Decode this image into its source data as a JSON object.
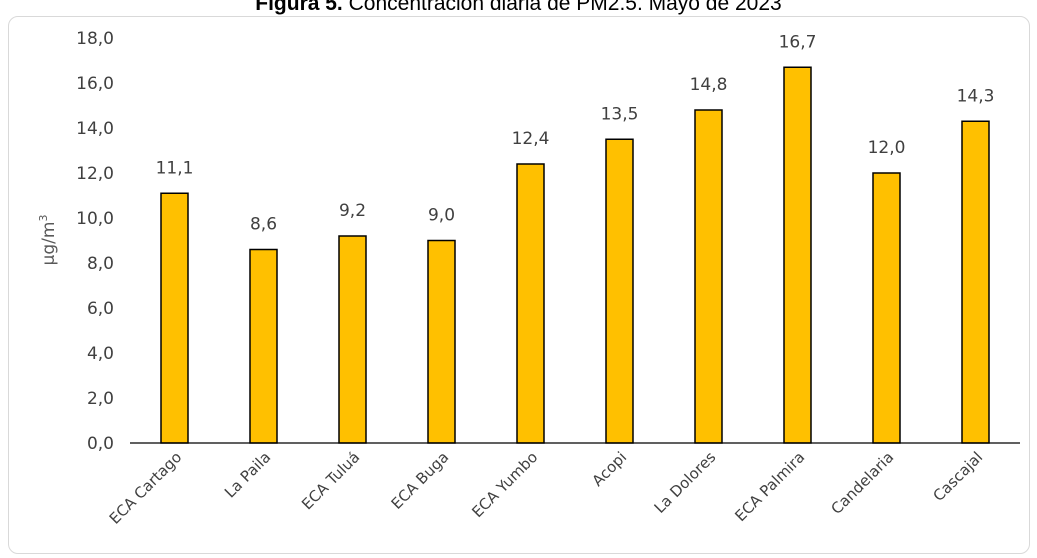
{
  "caption": {
    "lead": "Figura 5.",
    "text": "Concentración diaria de PM2.5. Mayo de 2023"
  },
  "chart_data": {
    "type": "bar",
    "title": "Figura 5. Concentración diaria de PM2.5. Mayo de 2023",
    "xlabel": "",
    "ylabel": "µg/m³",
    "ylabel_base": "µg/m",
    "ylabel_sup": "3",
    "categories": [
      "ECA Cartago",
      "La Paila",
      "ECA Tuluá",
      "ECA Buga",
      "ECA Yumbo",
      "Acopi",
      "La Dolores",
      "ECA Palmira",
      "Candelaria",
      "Cascajal"
    ],
    "values": [
      11.1,
      8.6,
      9.2,
      9.0,
      12.4,
      13.5,
      14.8,
      16.7,
      12.0,
      14.3
    ],
    "data_labels": [
      "11,1",
      "8,6",
      "9,2",
      "9,0",
      "12,4",
      "13,5",
      "14,8",
      "16,7",
      "12,0",
      "14,3"
    ],
    "ylim": [
      0,
      18
    ],
    "yticks": [
      "0,0",
      "2,0",
      "4,0",
      "6,0",
      "8,0",
      "10,0",
      "12,0",
      "14,0",
      "16,0",
      "18,0"
    ],
    "grid": false,
    "legend": "none",
    "colors": {
      "bar_fill": "#FFC000",
      "bar_stroke": "#000000",
      "axis": "#000000",
      "text": "#404040"
    }
  }
}
